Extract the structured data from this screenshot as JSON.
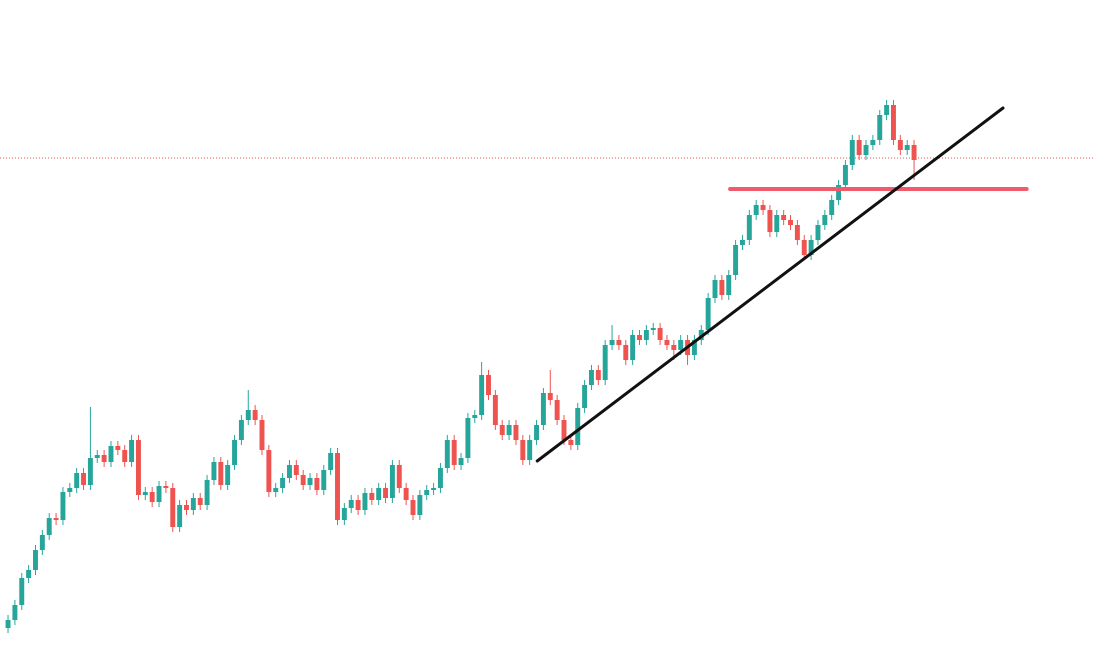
{
  "chart_data": {
    "type": "candlestick",
    "up_color": "#26a69a",
    "down_color": "#ef5350",
    "xlim": [
      -1.17,
      158.07
    ],
    "ylim": [
      0,
      671
    ],
    "open": [
      43,
      51,
      66,
      93,
      101,
      121,
      136,
      153,
      151,
      179,
      183,
      198,
      186,
      213,
      216,
      209,
      225,
      221,
      209,
      231,
      176,
      179,
      169,
      185,
      183,
      144,
      166,
      161,
      173,
      166,
      191,
      209,
      186,
      206,
      231,
      251,
      261,
      251,
      221,
      179,
      183,
      193,
      206,
      196,
      186,
      193,
      181,
      201,
      218,
      151,
      163,
      171,
      161,
      178,
      171,
      183,
      173,
      206,
      183,
      171,
      156,
      176,
      181,
      183,
      203,
      231,
      206,
      213,
      253,
      256,
      296,
      276,
      246,
      236,
      246,
      231,
      211,
      231,
      246,
      278,
      271,
      251,
      231,
      226,
      263,
      286,
      301,
      291,
      326,
      331,
      326,
      311,
      336,
      331,
      341,
      343,
      331,
      326,
      321,
      331,
      316,
      331,
      341,
      373,
      391,
      376,
      396,
      426,
      431,
      456,
      466,
      461,
      439,
      456,
      451,
      446,
      431,
      416,
      431,
      446,
      456,
      471,
      486,
      506,
      531,
      516,
      526,
      531,
      556,
      566,
      531,
      521,
      526
    ],
    "high": [
      56,
      71,
      98,
      106,
      126,
      141,
      158,
      158,
      184,
      188,
      203,
      203,
      264,
      221,
      221,
      230,
      230,
      226,
      236,
      236,
      184,
      184,
      190,
      190,
      188,
      171,
      171,
      178,
      178,
      196,
      214,
      214,
      211,
      236,
      256,
      281,
      266,
      256,
      226,
      188,
      198,
      211,
      211,
      201,
      198,
      198,
      206,
      223,
      223,
      168,
      176,
      176,
      183,
      183,
      188,
      188,
      211,
      211,
      188,
      176,
      181,
      186,
      188,
      208,
      236,
      236,
      218,
      258,
      261,
      309,
      301,
      281,
      251,
      251,
      251,
      236,
      236,
      251,
      283,
      301,
      276,
      256,
      236,
      268,
      291,
      306,
      306,
      331,
      346,
      336,
      331,
      341,
      341,
      346,
      348,
      348,
      336,
      331,
      336,
      336,
      336,
      346,
      378,
      396,
      396,
      401,
      431,
      436,
      461,
      471,
      471,
      466,
      461,
      461,
      456,
      451,
      436,
      436,
      451,
      461,
      476,
      491,
      511,
      536,
      536,
      531,
      536,
      561,
      571,
      571,
      536,
      531,
      531
    ],
    "low": [
      38,
      46,
      61,
      88,
      96,
      116,
      131,
      146,
      146,
      174,
      178,
      181,
      181,
      208,
      204,
      204,
      216,
      204,
      204,
      171,
      171,
      164,
      164,
      178,
      139,
      139,
      156,
      156,
      161,
      161,
      186,
      181,
      181,
      201,
      226,
      246,
      246,
      216,
      174,
      174,
      178,
      188,
      191,
      181,
      181,
      176,
      176,
      196,
      146,
      146,
      158,
      156,
      156,
      166,
      166,
      168,
      168,
      178,
      166,
      151,
      151,
      171,
      176,
      178,
      198,
      201,
      201,
      208,
      248,
      251,
      271,
      241,
      231,
      231,
      226,
      206,
      206,
      226,
      241,
      266,
      246,
      226,
      221,
      221,
      258,
      281,
      286,
      286,
      321,
      321,
      306,
      306,
      326,
      326,
      336,
      326,
      321,
      311,
      316,
      306,
      311,
      326,
      336,
      368,
      371,
      371,
      391,
      421,
      426,
      451,
      456,
      434,
      434,
      446,
      441,
      426,
      411,
      411,
      426,
      441,
      451,
      466,
      481,
      501,
      511,
      511,
      521,
      526,
      551,
      526,
      516,
      516,
      491
    ],
    "close": [
      51,
      66,
      93,
      101,
      121,
      136,
      153,
      151,
      179,
      183,
      198,
      186,
      213,
      216,
      209,
      225,
      221,
      209,
      231,
      176,
      179,
      169,
      185,
      183,
      144,
      166,
      161,
      173,
      166,
      191,
      209,
      186,
      206,
      231,
      251,
      261,
      251,
      221,
      179,
      183,
      193,
      206,
      196,
      186,
      193,
      181,
      201,
      218,
      151,
      163,
      171,
      161,
      178,
      171,
      183,
      173,
      206,
      183,
      171,
      156,
      176,
      181,
      183,
      203,
      231,
      206,
      213,
      253,
      256,
      296,
      276,
      246,
      236,
      246,
      231,
      211,
      231,
      246,
      278,
      271,
      251,
      231,
      226,
      263,
      286,
      301,
      291,
      326,
      331,
      326,
      311,
      336,
      331,
      341,
      343,
      331,
      326,
      321,
      331,
      316,
      331,
      341,
      373,
      391,
      376,
      396,
      426,
      431,
      456,
      466,
      461,
      439,
      456,
      451,
      446,
      431,
      416,
      431,
      446,
      456,
      471,
      486,
      506,
      531,
      516,
      526,
      531,
      556,
      566,
      531,
      521,
      526,
      511
    ],
    "price_line": {
      "value": 513,
      "color": "#ef5350"
    },
    "level": {
      "x": [
        105.2,
        148.4
      ],
      "value": 482,
      "color": "#f05a6a"
    },
    "trendline": {
      "x": [
        77.1,
        144.96
      ],
      "values": [
        210,
        563
      ],
      "color": "#111111"
    }
  }
}
